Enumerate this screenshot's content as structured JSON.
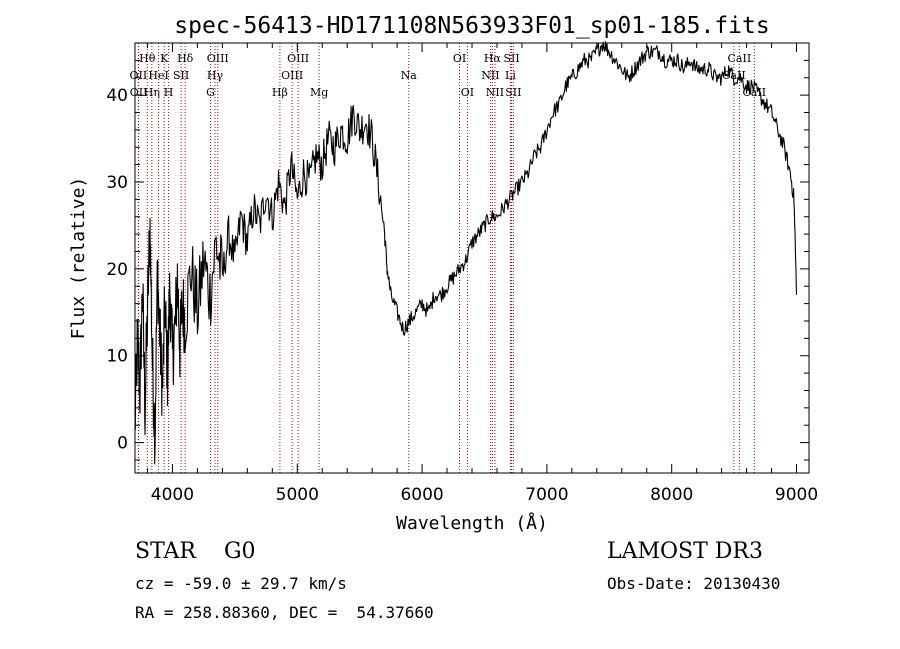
{
  "chart_data": {
    "type": "line",
    "title": "spec-56413-HD171108N563933F01_sp01-185.fits",
    "xlabel": "Wavelength (Å)",
    "ylabel": "Flux (relative)",
    "xlim": [
      3700,
      9100
    ],
    "ylim": [
      -3.5,
      46
    ],
    "xticks": [
      4000,
      5000,
      6000,
      7000,
      8000,
      9000
    ],
    "yticks": [
      0,
      10,
      20,
      30,
      40
    ],
    "grid": false,
    "series": [
      {
        "name": "spectrum",
        "x": [
          3700,
          3720,
          3740,
          3760,
          3780,
          3800,
          3820,
          3840,
          3860,
          3880,
          3900,
          3920,
          3940,
          3960,
          3980,
          4000,
          4020,
          4040,
          4060,
          4080,
          4100,
          4150,
          4200,
          4250,
          4300,
          4350,
          4400,
          4450,
          4500,
          4550,
          4600,
          4650,
          4700,
          4750,
          4800,
          4850,
          4900,
          4950,
          5000,
          5050,
          5100,
          5150,
          5200,
          5250,
          5300,
          5350,
          5400,
          5450,
          5500,
          5550,
          5600,
          5650,
          5700,
          5720,
          5750,
          5800,
          5850,
          5900,
          5950,
          6000,
          6050,
          6100,
          6150,
          6200,
          6250,
          6300,
          6350,
          6400,
          6450,
          6500,
          6550,
          6600,
          6650,
          6700,
          6750,
          6800,
          6850,
          6900,
          6950,
          7000,
          7050,
          7100,
          7150,
          7200,
          7250,
          7300,
          7350,
          7400,
          7450,
          7500,
          7550,
          7600,
          7650,
          7700,
          7750,
          7800,
          7850,
          7900,
          7950,
          8000,
          8050,
          8100,
          8150,
          8200,
          8250,
          8300,
          8350,
          8400,
          8450,
          8500,
          8550,
          8600,
          8650,
          8700,
          8750,
          8800,
          8850,
          8900,
          8950,
          8980,
          9000
        ],
        "y": [
          2,
          12,
          6,
          18,
          4,
          15,
          25,
          9,
          1,
          20,
          12,
          6,
          16,
          8,
          18,
          10,
          13,
          19,
          11,
          16,
          14,
          20,
          15,
          21,
          17,
          23,
          19,
          24,
          21,
          26,
          23,
          27,
          25,
          29,
          26,
          30,
          27,
          32,
          28,
          31,
          30,
          33,
          32,
          35,
          34,
          36,
          35,
          38,
          36,
          37,
          35,
          30,
          24,
          20,
          17,
          15,
          13,
          14,
          15,
          16,
          15,
          17,
          17,
          18,
          19,
          20,
          21,
          23,
          24,
          25,
          26,
          26,
          27,
          28,
          29,
          30,
          31,
          33,
          34,
          36,
          38,
          39,
          41,
          42,
          43,
          44,
          44,
          45,
          46,
          45,
          44,
          43,
          42,
          43,
          44,
          45,
          45,
          45,
          44,
          44,
          44,
          43,
          44,
          43,
          43,
          43,
          42,
          42,
          43,
          42,
          42,
          41,
          41,
          40,
          39,
          38,
          36,
          34,
          31,
          28,
          17
        ]
      }
    ],
    "lines": [
      {
        "label": "Hθ",
        "x": 3798,
        "row": 1
      },
      {
        "label": "OII",
        "x": 3727,
        "row": 2
      },
      {
        "label": "OII",
        "x": 3729,
        "row": 3
      },
      {
        "label": "Hη",
        "x": 3835,
        "row": 3
      },
      {
        "label": "HeI",
        "x": 3889,
        "row": 2
      },
      {
        "label": "K",
        "x": 3934,
        "row": 1
      },
      {
        "label": "H",
        "x": 3969,
        "row": 3
      },
      {
        "label": "SII",
        "x": 4069,
        "row": 2
      },
      {
        "label": "Hδ",
        "x": 4102,
        "row": 1
      },
      {
        "label": "OIII",
        "x": 4363,
        "row": 1
      },
      {
        "label": "Hγ",
        "x": 4341,
        "row": 2
      },
      {
        "label": "G",
        "x": 4305,
        "row": 3
      },
      {
        "label": "Hβ",
        "x": 4861,
        "row": 3
      },
      {
        "label": "OIII",
        "x": 5007,
        "row": 1
      },
      {
        "label": "OIII",
        "x": 4959,
        "row": 2
      },
      {
        "label": "Mg",
        "x": 5175,
        "row": 3
      },
      {
        "label": "Na",
        "x": 5893,
        "row": 2
      },
      {
        "label": "OI",
        "x": 6300,
        "row": 1
      },
      {
        "label": "OI",
        "x": 6363,
        "row": 3
      },
      {
        "label": "Hα",
        "x": 6563,
        "row": 1
      },
      {
        "label": "NII",
        "x": 6548,
        "row": 2
      },
      {
        "label": "NII",
        "x": 6584,
        "row": 3
      },
      {
        "label": "SII",
        "x": 6717,
        "row": 1
      },
      {
        "label": "Li",
        "x": 6708,
        "row": 2
      },
      {
        "label": "SII",
        "x": 6731,
        "row": 3
      },
      {
        "label": "CaII",
        "x": 8542,
        "row": 1
      },
      {
        "label": "CaII",
        "x": 8498,
        "row": 2
      },
      {
        "label": "CaII",
        "x": 8662,
        "row": 3
      }
    ]
  },
  "info": {
    "class": "STAR    G0",
    "survey": "LAMOST DR3",
    "cz": "cz = -59.0 ± 29.7 km/s",
    "obs_date": "Obs-Date: 20130430",
    "coords": "RA = 258.88360, DEC =  54.37660"
  }
}
